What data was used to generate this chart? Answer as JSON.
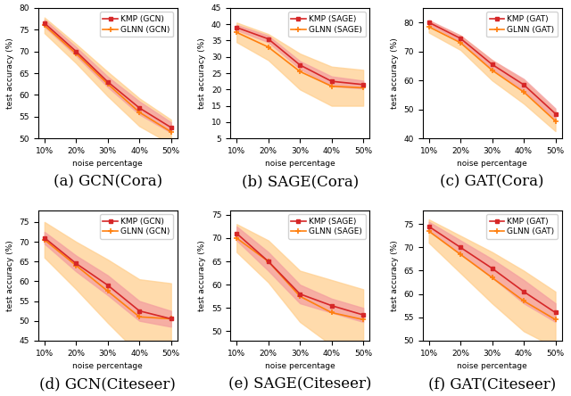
{
  "x": [
    10,
    20,
    30,
    40,
    50
  ],
  "x_labels": [
    "10%",
    "20%",
    "30%",
    "40%",
    "50%"
  ],
  "subplots": [
    {
      "title": "(a) GCN(Cora)",
      "kmp_label": "KMP (GCN)",
      "glnn_label": "GLNN (GCN)",
      "kmp_mean": [
        76.5,
        70.0,
        63.0,
        57.0,
        52.5
      ],
      "kmp_std": [
        0.8,
        1.0,
        1.2,
        1.5,
        1.2
      ],
      "glnn_mean": [
        76.0,
        69.5,
        62.5,
        56.0,
        51.5
      ],
      "glnn_std": [
        1.8,
        2.2,
        2.8,
        3.2,
        2.8
      ],
      "ylim": [
        50,
        80
      ]
    },
    {
      "title": "(b) SAGE(Cora)",
      "kmp_label": "KMP (SAGE)",
      "glnn_label": "GLNN (SAGE)",
      "kmp_mean": [
        39.0,
        35.5,
        27.5,
        22.5,
        21.5
      ],
      "kmp_std": [
        0.8,
        1.0,
        1.2,
        1.5,
        1.2
      ],
      "glnn_mean": [
        37.5,
        33.0,
        25.5,
        21.0,
        20.5
      ],
      "glnn_std": [
        3.0,
        4.0,
        5.5,
        6.0,
        5.5
      ],
      "ylim": [
        5,
        45
      ]
    },
    {
      "title": "(c) GAT(Cora)",
      "kmp_label": "KMP (GAT)",
      "glnn_label": "GLNN (GAT)",
      "kmp_mean": [
        80.0,
        74.5,
        65.5,
        58.5,
        48.5
      ],
      "kmp_std": [
        0.8,
        1.0,
        1.5,
        2.0,
        1.8
      ],
      "glnn_mean": [
        78.5,
        73.0,
        63.5,
        56.0,
        46.0
      ],
      "glnn_std": [
        2.0,
        2.5,
        3.5,
        4.0,
        3.5
      ],
      "ylim": [
        40,
        85
      ]
    },
    {
      "title": "(d) GCN(Citeseer)",
      "kmp_label": "KMP (GCN)",
      "glnn_label": "GLNN (GCN)",
      "kmp_mean": [
        71.0,
        64.5,
        59.0,
        52.5,
        50.5
      ],
      "kmp_std": [
        1.5,
        2.0,
        2.5,
        2.5,
        2.0
      ],
      "glnn_mean": [
        70.5,
        64.0,
        57.5,
        51.0,
        50.5
      ],
      "glnn_std": [
        4.5,
        6.0,
        8.0,
        9.5,
        9.0
      ],
      "ylim": [
        45,
        78
      ]
    },
    {
      "title": "(e) SAGE(Citeseer)",
      "kmp_label": "KMP (SAGE)",
      "glnn_label": "GLNN (SAGE)",
      "kmp_mean": [
        71.0,
        65.0,
        58.0,
        55.5,
        53.5
      ],
      "kmp_std": [
        1.5,
        2.0,
        2.0,
        1.5,
        1.5
      ],
      "glnn_mean": [
        70.0,
        65.0,
        57.5,
        54.0,
        52.5
      ],
      "glnn_std": [
        3.0,
        4.5,
        5.5,
        7.0,
        6.5
      ],
      "ylim": [
        48,
        76
      ]
    },
    {
      "title": "(f) GAT(Citeseer)",
      "kmp_label": "KMP (GAT)",
      "glnn_label": "GLNN (GAT)",
      "kmp_mean": [
        74.5,
        70.0,
        65.5,
        60.5,
        56.0
      ],
      "kmp_std": [
        1.0,
        1.5,
        2.0,
        2.5,
        2.0
      ],
      "glnn_mean": [
        73.5,
        68.5,
        63.5,
        58.5,
        54.5
      ],
      "glnn_std": [
        2.5,
        4.0,
        5.5,
        6.5,
        6.0
      ],
      "ylim": [
        50,
        78
      ]
    }
  ],
  "kmp_color": "#d62728",
  "glnn_color": "#ff7f0e",
  "kmp_fill_color": "#f4a0a0",
  "glnn_fill_color": "#ffd090",
  "xlabel": "noise percentage",
  "ylabel": "test accuracy (%)",
  "title_fontsize": 12,
  "label_fontsize": 6.5,
  "legend_fontsize": 6.5,
  "tick_fontsize": 6.5
}
